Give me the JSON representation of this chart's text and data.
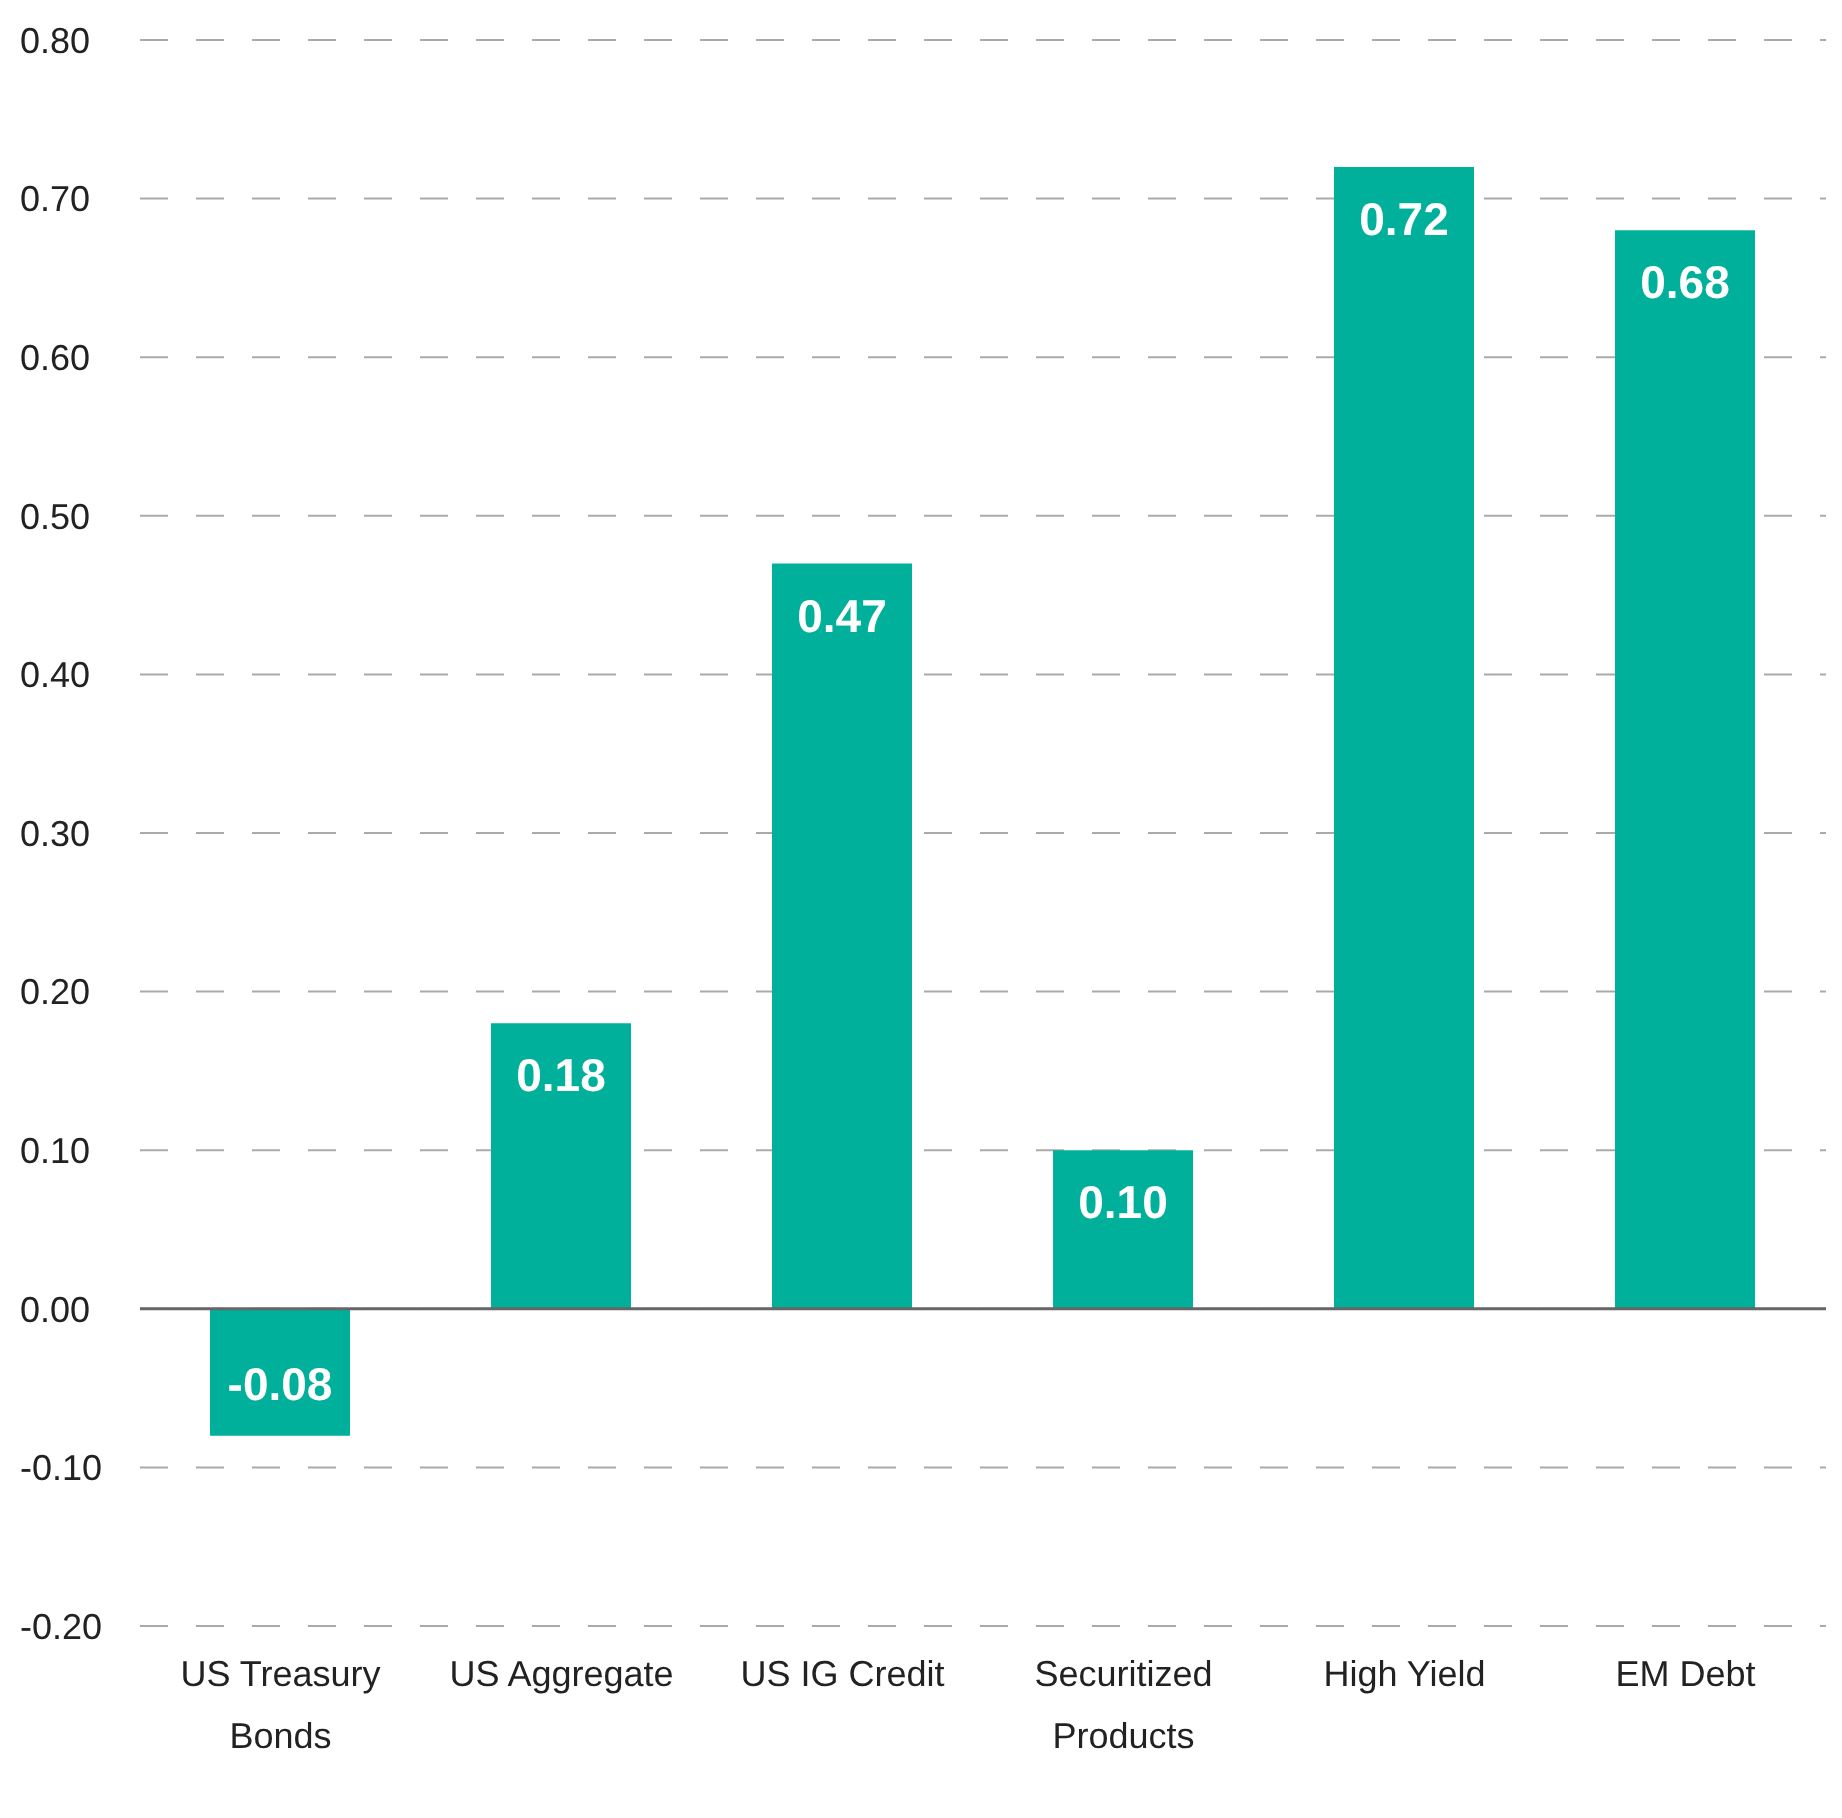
{
  "chart_data": {
    "type": "bar",
    "categories": [
      "US Treasury Bonds",
      "US Aggregate",
      "US IG Credit",
      "Securitized Products",
      "High Yield",
      "EM Debt"
    ],
    "values": [
      -0.08,
      0.18,
      0.47,
      0.1,
      0.72,
      0.68
    ],
    "color": "#00b09b",
    "value_labels": [
      "-0.08",
      "0.18",
      "0.47",
      "0.10",
      "0.72",
      "0.68"
    ],
    "ylim": [
      -0.2,
      0.8
    ],
    "yticks": [
      {
        "value": -0.2,
        "label": "-0.20"
      },
      {
        "value": -0.1,
        "label": "-0.10"
      },
      {
        "value": 0,
        "label": "0.00"
      },
      {
        "value": 0.1,
        "label": "0.10"
      },
      {
        "value": 0.2,
        "label": "0.20"
      },
      {
        "value": 0.3,
        "label": "0.30"
      },
      {
        "value": 0.4,
        "label": "0.40"
      },
      {
        "value": 0.5,
        "label": "0.50"
      },
      {
        "value": 0.6,
        "label": "0.60"
      },
      {
        "value": 0.7,
        "label": "0.70"
      },
      {
        "value": 0.8,
        "label": "0.80"
      }
    ],
    "grid": "y",
    "ref_lines": [
      {
        "axis": "y",
        "value": 0,
        "color": "#666666"
      }
    ]
  }
}
